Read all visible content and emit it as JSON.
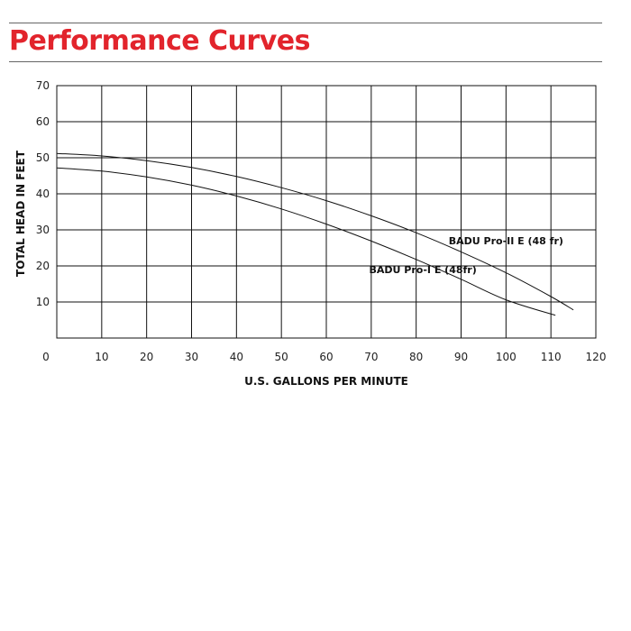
{
  "page": {
    "title": "Performance Curves"
  },
  "chart_data": {
    "type": "line",
    "title": "",
    "xlabel": "U.S. GALLONS PER MINUTE",
    "ylabel": "TOTAL HEAD IN FEET",
    "xlim": [
      0,
      120
    ],
    "ylim": [
      0,
      70
    ],
    "x_ticks": [
      0,
      10,
      20,
      30,
      40,
      50,
      60,
      70,
      80,
      90,
      100,
      110,
      120
    ],
    "y_ticks": [
      10,
      20,
      30,
      40,
      50,
      60,
      70
    ],
    "grid": true,
    "series": [
      {
        "name": "BADU Pro-II E (48 fr)",
        "x": [
          0,
          10,
          20,
          30,
          40,
          50,
          60,
          70,
          80,
          90,
          100,
          110,
          115
        ],
        "y": [
          51.2,
          50.5,
          49.2,
          47.3,
          44.8,
          41.7,
          38.1,
          33.9,
          29.2,
          23.9,
          18.1,
          11.5,
          7.8
        ],
        "label_at": [
          100,
          26
        ]
      },
      {
        "name": "BADU Pro-I E (48fr)",
        "x": [
          0,
          10,
          20,
          30,
          40,
          50,
          60,
          70,
          80,
          90,
          100,
          111
        ],
        "y": [
          47.2,
          46.3,
          44.7,
          42.4,
          39.4,
          35.8,
          31.6,
          26.9,
          21.8,
          16.3,
          10.6,
          6.3
        ],
        "label_at": [
          81.5,
          18
        ]
      }
    ]
  }
}
